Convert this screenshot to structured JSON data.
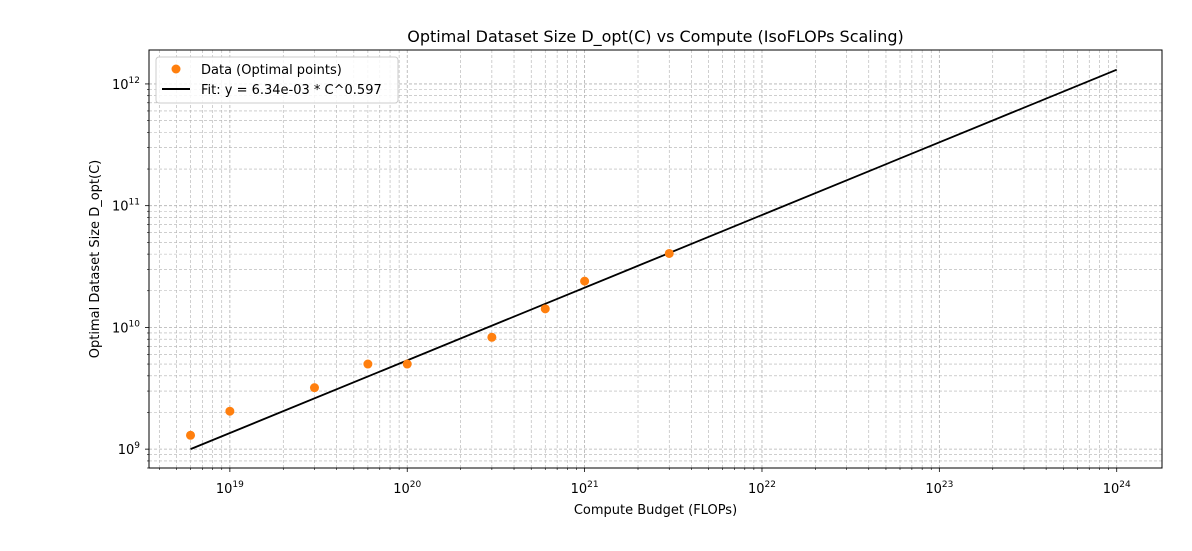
{
  "chart_data": {
    "type": "scatter",
    "title": "Optimal Dataset Size D_opt(C) vs Compute (IsoFLOPs Scaling)",
    "xlabel": "Compute Budget (FLOPs)",
    "ylabel": "Optimal Dataset Size D_opt(C)",
    "xscale": "log",
    "yscale": "log",
    "xlim": [
      3.5e+18,
      1.8e+24
    ],
    "ylim": [
      700000000.0,
      1900000000000.0
    ],
    "grid": true,
    "legend_position": "top-left",
    "x_ticks": [
      {
        "base": "10",
        "exp": "19",
        "value": 1e+19
      },
      {
        "base": "10",
        "exp": "20",
        "value": 1e+20
      },
      {
        "base": "10",
        "exp": "21",
        "value": 1e+21
      },
      {
        "base": "10",
        "exp": "22",
        "value": 1e+22
      },
      {
        "base": "10",
        "exp": "23",
        "value": 1e+23
      },
      {
        "base": "10",
        "exp": "24",
        "value": 1e+24
      }
    ],
    "y_ticks": [
      {
        "base": "10",
        "exp": "9",
        "value": 1000000000.0
      },
      {
        "base": "10",
        "exp": "10",
        "value": 10000000000.0
      },
      {
        "base": "10",
        "exp": "11",
        "value": 100000000000.0
      },
      {
        "base": "10",
        "exp": "12",
        "value": 1000000000000.0
      }
    ],
    "series": [
      {
        "name": "Data (Optimal points)",
        "kind": "scatter",
        "color": "#ff7f0e",
        "x": [
          6e+18,
          1e+19,
          3e+19,
          6e+19,
          1e+20,
          3e+20,
          6e+20,
          1e+21,
          3e+21
        ],
        "y": [
          1300000000.0,
          2050000000.0,
          3200000000.0,
          5000000000.0,
          5000000000.0,
          8300000000.0,
          14200000000.0,
          24000000000.0,
          40500000000.0
        ]
      },
      {
        "name": "Fit: y = 6.34e-03 * C^0.597",
        "kind": "line",
        "color": "#000000",
        "x": [
          6e+18,
          1e+24
        ],
        "y": [
          1000000000.0,
          1310000000000.0
        ]
      }
    ]
  }
}
